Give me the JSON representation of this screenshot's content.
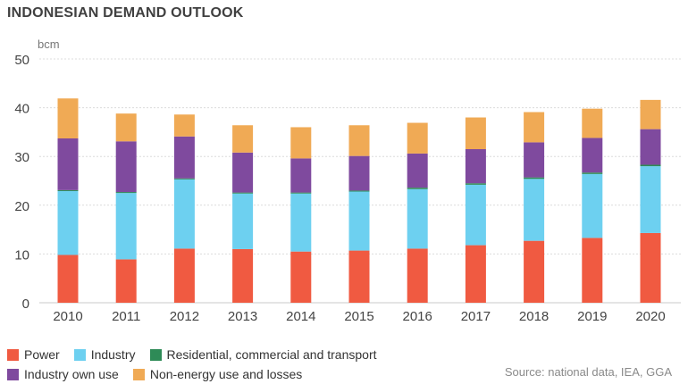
{
  "title": "INDONESIAN DEMAND OUTLOOK",
  "source": "Source: national data, IEA, GGA",
  "chart_data": {
    "type": "bar",
    "stacked": true,
    "ylabel": "bcm",
    "ylim": [
      0,
      50
    ],
    "yticks": [
      0,
      10,
      20,
      30,
      40,
      50
    ],
    "grid": true,
    "categories": [
      "2010",
      "2011",
      "2012",
      "2013",
      "2014",
      "2015",
      "2016",
      "2017",
      "2018",
      "2019",
      "2020"
    ],
    "series": [
      {
        "name": "Power",
        "color": "#f05a41",
        "values": [
          9.8,
          8.9,
          11.1,
          11.0,
          10.5,
          10.7,
          11.1,
          11.8,
          12.7,
          13.3,
          14.3
        ]
      },
      {
        "name": "Industry",
        "color": "#6dd0f0",
        "values": [
          13.1,
          13.6,
          14.2,
          11.4,
          11.9,
          12.1,
          12.2,
          12.4,
          12.7,
          13.1,
          13.7
        ]
      },
      {
        "name": "Residential, commercial and transport",
        "color": "#2e8b57",
        "values": [
          0.2,
          0.2,
          0.2,
          0.2,
          0.2,
          0.2,
          0.3,
          0.3,
          0.3,
          0.3,
          0.3
        ]
      },
      {
        "name": "Industry own use",
        "color": "#7f4a9e",
        "values": [
          10.6,
          10.4,
          8.6,
          8.2,
          7.0,
          7.1,
          7.0,
          7.0,
          7.2,
          7.1,
          7.3
        ]
      },
      {
        "name": "Non-energy use and losses",
        "color": "#f0aa55",
        "values": [
          8.2,
          5.7,
          4.5,
          5.6,
          6.4,
          6.3,
          6.3,
          6.5,
          6.2,
          6.0,
          6.0
        ]
      }
    ]
  }
}
